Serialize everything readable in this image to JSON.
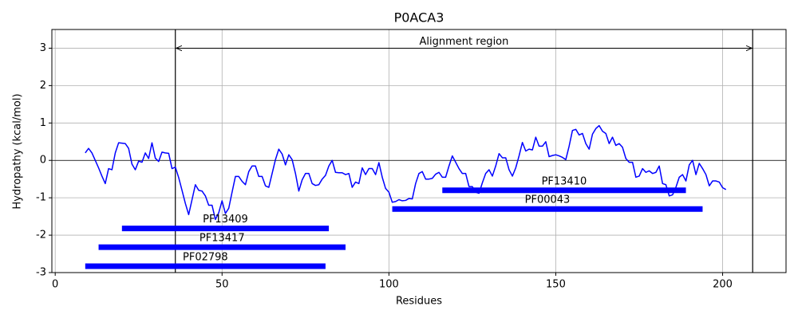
{
  "chart_data": {
    "type": "line",
    "title": "P0ACA3",
    "xlabel": "Residues",
    "ylabel": "Hydropathy (kcal/mol)",
    "xlim": [
      -1,
      219
    ],
    "ylim": [
      -3,
      3.5
    ],
    "xticks": [
      0,
      50,
      100,
      150,
      200
    ],
    "yticks": [
      -3,
      -2,
      -1,
      0,
      1,
      2,
      3
    ],
    "grid": true,
    "hline": 0,
    "series": [
      {
        "color": "#0000ff",
        "x": [
          9,
          10,
          11,
          12,
          13,
          14,
          15,
          16,
          17,
          18,
          19,
          20,
          21,
          22,
          23,
          24,
          25,
          26,
          27,
          28,
          29,
          30,
          31,
          32,
          33,
          34,
          35,
          36,
          37,
          38,
          39,
          40,
          41,
          42,
          43,
          44,
          45,
          46,
          47,
          48,
          49,
          50,
          51,
          52,
          53,
          54,
          55,
          56,
          57,
          58,
          59,
          60,
          61,
          62,
          63,
          64,
          65,
          66,
          67,
          68,
          69,
          70,
          71,
          72,
          73,
          74,
          75,
          76,
          77,
          78,
          79,
          80,
          81,
          82,
          83,
          84,
          85,
          86,
          87,
          88,
          89,
          90,
          91,
          92,
          93,
          94,
          95,
          96,
          97,
          98,
          99,
          100,
          101,
          102,
          103,
          104,
          105,
          106,
          107,
          108,
          109,
          110,
          111,
          112,
          113,
          114,
          115,
          116,
          117,
          118,
          119,
          120,
          121,
          122,
          123,
          124,
          125,
          126,
          127,
          128,
          129,
          130,
          131,
          132,
          133,
          134,
          135,
          136,
          137,
          138,
          139,
          140,
          141,
          142,
          143,
          144,
          145,
          146,
          147,
          148,
          149,
          150,
          151,
          152,
          153,
          154,
          155,
          156,
          157,
          158,
          159,
          160,
          161,
          162,
          163,
          164,
          165,
          166,
          167,
          168,
          169,
          170,
          171,
          172,
          173,
          174,
          175,
          176,
          177,
          178,
          179,
          180,
          181,
          182,
          183,
          184,
          185,
          186,
          187,
          188,
          189,
          190,
          191,
          192,
          193,
          194,
          195,
          196,
          197,
          198,
          199,
          200,
          201
        ],
        "values": [
          0.2,
          0.32,
          0.2,
          0,
          -0.2,
          -0.42,
          -0.62,
          -0.22,
          -0.25,
          0.2,
          0.47,
          0.46,
          0.45,
          0.32,
          -0.1,
          -0.25,
          -0.02,
          -0.05,
          0.2,
          0.05,
          0.47,
          0.06,
          -0.03,
          0.22,
          0.2,
          0.19,
          -0.22,
          -0.18,
          -0.46,
          -0.8,
          -1.15,
          -1.45,
          -1.05,
          -0.65,
          -0.8,
          -0.82,
          -0.95,
          -1.2,
          -1.2,
          -1.58,
          -1.4,
          -1.08,
          -1.42,
          -1.28,
          -0.85,
          -0.43,
          -0.43,
          -0.56,
          -0.65,
          -0.3,
          -0.15,
          -0.15,
          -0.43,
          -0.43,
          -0.68,
          -0.72,
          -0.35,
          0.02,
          0.3,
          0.17,
          -0.12,
          0.15,
          0.02,
          -0.35,
          -0.82,
          -0.52,
          -0.35,
          -0.35,
          -0.62,
          -0.67,
          -0.65,
          -0.5,
          -0.4,
          -0.15,
          0,
          -0.32,
          -0.33,
          -0.33,
          -0.38,
          -0.35,
          -0.72,
          -0.58,
          -0.62,
          -0.2,
          -0.38,
          -0.22,
          -0.22,
          -0.38,
          -0.06,
          -0.45,
          -0.75,
          -0.85,
          -1.12,
          -1.1,
          -1.05,
          -1.08,
          -1.07,
          -1.02,
          -1.03,
          -0.62,
          -0.35,
          -0.3,
          -0.5,
          -0.5,
          -0.48,
          -0.37,
          -0.32,
          -0.45,
          -0.45,
          -0.15,
          0.12,
          -0.05,
          -0.22,
          -0.35,
          -0.35,
          -0.7,
          -0.7,
          -0.85,
          -0.88,
          -0.6,
          -0.35,
          -0.25,
          -0.42,
          -0.15,
          0.18,
          0.07,
          0.07,
          -0.25,
          -0.42,
          -0.2,
          0.12,
          0.48,
          0.25,
          0.3,
          0.28,
          0.62,
          0.38,
          0.38,
          0.5,
          0.1,
          0.13,
          0.15,
          0.12,
          0.08,
          0.02,
          0.38,
          0.8,
          0.83,
          0.68,
          0.72,
          0.45,
          0.3,
          0.7,
          0.85,
          0.93,
          0.78,
          0.72,
          0.45,
          0.62,
          0.4,
          0.45,
          0.35,
          0.05,
          -0.05,
          -0.05,
          -0.45,
          -0.42,
          -0.22,
          -0.32,
          -0.28,
          -0.35,
          -0.32,
          -0.15,
          -0.62,
          -0.65,
          -0.95,
          -0.92,
          -0.72,
          -0.45,
          -0.38,
          -0.55,
          -0.12,
          0,
          -0.38,
          -0.08,
          -0.22,
          -0.38,
          -0.68,
          -0.55,
          -0.55,
          -0.58,
          -0.73,
          -0.78
        ]
      }
    ],
    "domains": [
      {
        "name": "PF13410",
        "start": 116,
        "end": 189,
        "y": -0.8,
        "color": "#0000ff"
      },
      {
        "name": "PF00043",
        "start": 101,
        "end": 194,
        "y": -1.3,
        "color": "#0000ff"
      },
      {
        "name": "PF13409",
        "start": 20,
        "end": 82,
        "y": -1.82,
        "color": "#0000ff"
      },
      {
        "name": "PF13417",
        "start": 13,
        "end": 87,
        "y": -2.32,
        "color": "#0000ff"
      },
      {
        "name": "PF02798",
        "start": 9,
        "end": 81,
        "y": -2.83,
        "color": "#0000ff"
      }
    ],
    "annotation": {
      "text": "Alignment region",
      "start": 36,
      "end": 209,
      "y": 3
    }
  }
}
